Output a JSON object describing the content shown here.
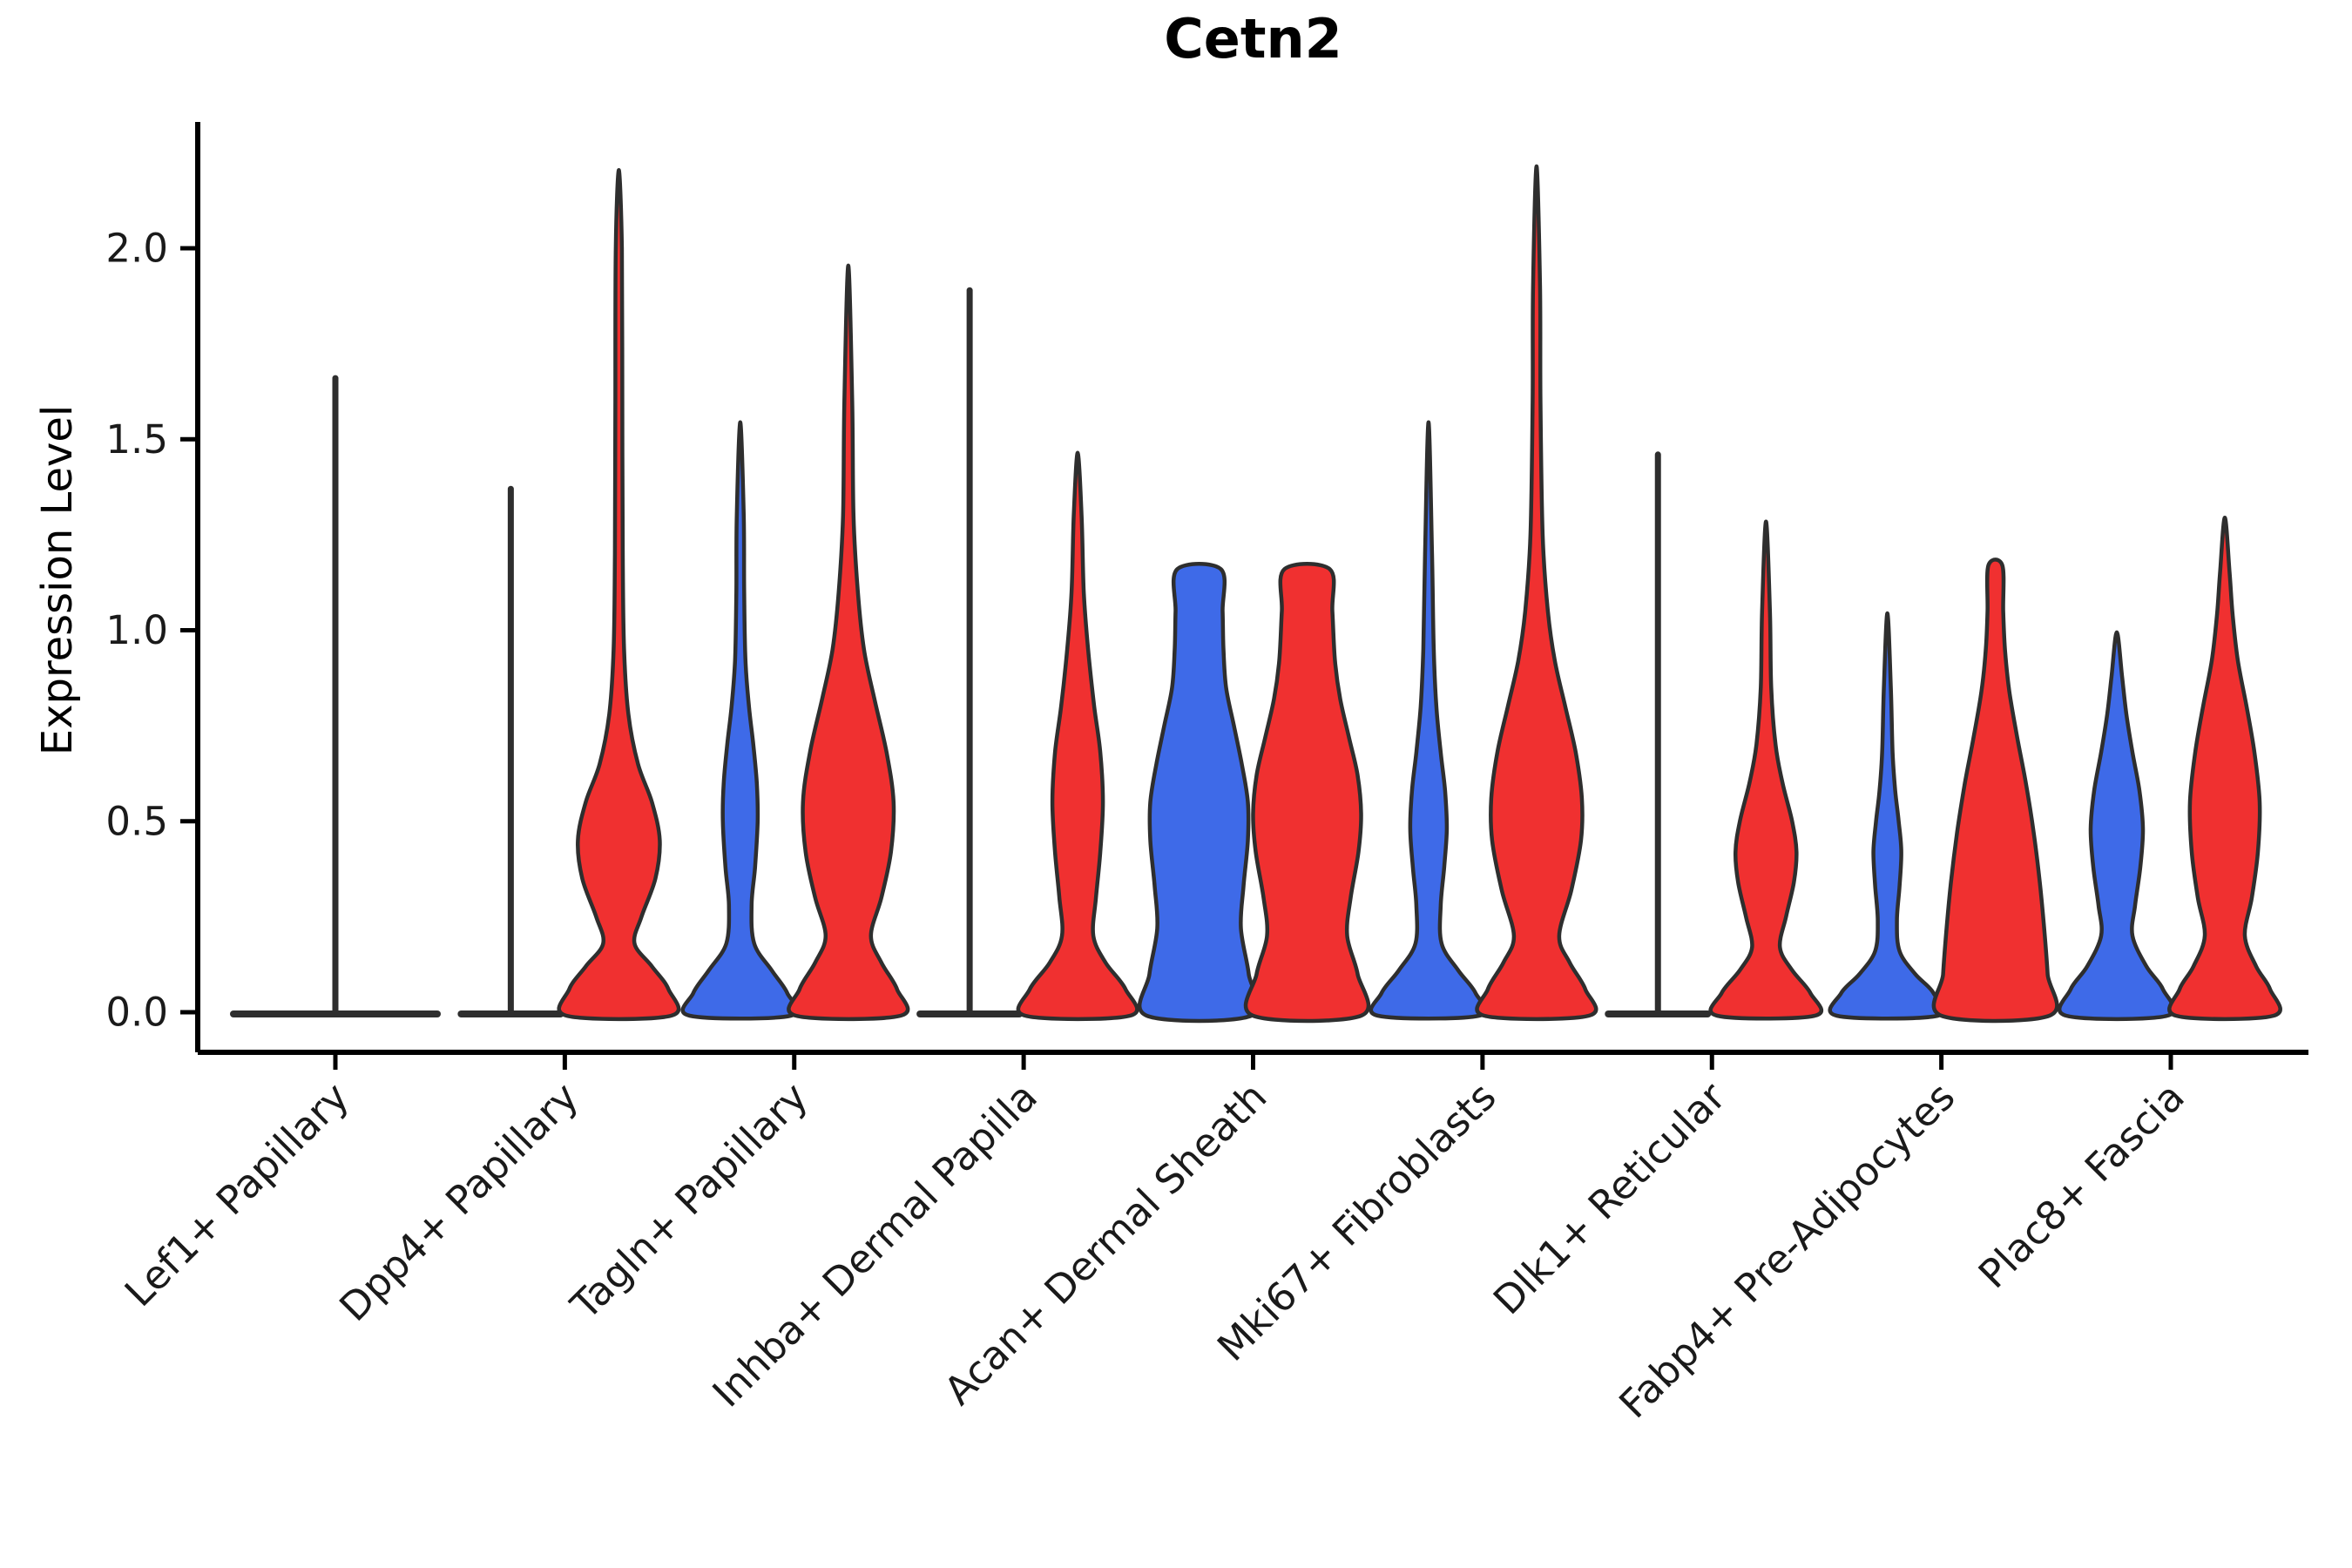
{
  "figure": {
    "title": "Cetn2",
    "ylabel": "Expression Level"
  },
  "chart_data": {
    "type": "violin",
    "title": "Cetn2",
    "xlabel": "",
    "ylabel": "Expression Level",
    "yticks": [
      0.0,
      0.5,
      1.0,
      1.5,
      2.0
    ],
    "ylim": [
      -0.1,
      2.33
    ],
    "grid": false,
    "legend": "none",
    "colors": {
      "blue": "#3E6AE8",
      "red": "#F03030",
      "outline": "#2E2E2E",
      "axis": "#000000",
      "text": "#1A1A1A"
    },
    "categories": [
      "Lef1+ Papillary",
      "Dpp4+ Papillary",
      "Tagln+ Papillary",
      "Inhba+ Dermal Papilla",
      "Acan+ Dermal Sheath",
      "Mki67+ Fibroblasts",
      "Dlk1+ Reticular",
      "Fabp4+ Pre-Adipocytes",
      "Plac8+ Fascia"
    ],
    "violins": [
      {
        "category": "Lef1+ Papillary",
        "parts": [
          {
            "group": "both",
            "side": 0,
            "kind": "flat",
            "color": "outline",
            "halfwidth": 120,
            "spike_top": 1.66
          }
        ]
      },
      {
        "category": "Dpp4+ Papillary",
        "parts": [
          {
            "group": "blue",
            "side": -1,
            "kind": "flat",
            "color": "outline",
            "halfwidth": 60,
            "spike_top": 1.37
          },
          {
            "group": "red",
            "side": 1,
            "kind": "density",
            "color": "red",
            "max": 2.2,
            "profile": [
              [
                0,
                60
              ],
              [
                0.06,
                57
              ],
              [
                0.12,
                38
              ],
              [
                0.18,
                18
              ],
              [
                0.25,
                26
              ],
              [
                0.35,
                42
              ],
              [
                0.45,
                47
              ],
              [
                0.55,
                38
              ],
              [
                0.65,
                22
              ],
              [
                0.78,
                11
              ],
              [
                0.95,
                6
              ],
              [
                1.2,
                4.5
              ],
              [
                1.6,
                4
              ],
              [
                2.0,
                3.5
              ],
              [
                2.2,
                3
              ]
            ]
          }
        ]
      },
      {
        "category": "Tagln+ Papillary",
        "parts": [
          {
            "group": "blue",
            "side": -1,
            "kind": "density",
            "color": "blue",
            "max": 1.54,
            "profile": [
              [
                0,
                58
              ],
              [
                0.05,
                54
              ],
              [
                0.11,
                36
              ],
              [
                0.18,
                16
              ],
              [
                0.28,
                13
              ],
              [
                0.38,
                17
              ],
              [
                0.5,
                20
              ],
              [
                0.6,
                19
              ],
              [
                0.7,
                15
              ],
              [
                0.8,
                10
              ],
              [
                0.92,
                6
              ],
              [
                1.1,
                4.5
              ],
              [
                1.3,
                4
              ],
              [
                1.54,
                3
              ]
            ]
          },
          {
            "group": "red",
            "side": 1,
            "kind": "density",
            "color": "red",
            "max": 1.95,
            "profile": [
              [
                0,
                60
              ],
              [
                0.06,
                56
              ],
              [
                0.13,
                38
              ],
              [
                0.2,
                26
              ],
              [
                0.3,
                38
              ],
              [
                0.42,
                49
              ],
              [
                0.55,
                52
              ],
              [
                0.68,
                44
              ],
              [
                0.82,
                30
              ],
              [
                0.95,
                18
              ],
              [
                1.1,
                11
              ],
              [
                1.3,
                6
              ],
              [
                1.6,
                4.5
              ],
              [
                1.95,
                3
              ]
            ]
          }
        ]
      },
      {
        "category": "Inhba+ Dermal Papilla",
        "parts": [
          {
            "group": "blue",
            "side": -1,
            "kind": "flat",
            "color": "outline",
            "halfwidth": 60,
            "spike_top": 1.89
          },
          {
            "group": "red",
            "side": 1,
            "kind": "density",
            "color": "red",
            "max": 1.46,
            "profile": [
              [
                0,
                60
              ],
              [
                0.06,
                55
              ],
              [
                0.13,
                32
              ],
              [
                0.2,
                18
              ],
              [
                0.3,
                21
              ],
              [
                0.42,
                26
              ],
              [
                0.55,
                29
              ],
              [
                0.68,
                26
              ],
              [
                0.8,
                19
              ],
              [
                0.95,
                12
              ],
              [
                1.1,
                7
              ],
              [
                1.3,
                4.5
              ],
              [
                1.46,
                3
              ]
            ]
          }
        ]
      },
      {
        "category": "Acan+ Dermal Sheath",
        "parts": [
          {
            "group": "blue",
            "side": -1,
            "kind": "density",
            "color": "blue",
            "max": 1.16,
            "flat_top": true,
            "profile": [
              [
                0,
                60
              ],
              [
                0.1,
                57
              ],
              [
                0.22,
                48
              ],
              [
                0.33,
                51
              ],
              [
                0.45,
                56
              ],
              [
                0.55,
                56
              ],
              [
                0.65,
                49
              ],
              [
                0.75,
                40
              ],
              [
                0.85,
                31
              ],
              [
                0.95,
                28
              ],
              [
                1.05,
                27
              ],
              [
                1.16,
                25
              ]
            ]
          },
          {
            "group": "red",
            "side": 1,
            "kind": "density",
            "color": "red",
            "max": 1.16,
            "flat_top": true,
            "profile": [
              [
                0,
                62
              ],
              [
                0.1,
                58
              ],
              [
                0.2,
                46
              ],
              [
                0.3,
                50
              ],
              [
                0.42,
                59
              ],
              [
                0.52,
                62
              ],
              [
                0.62,
                58
              ],
              [
                0.72,
                48
              ],
              [
                0.82,
                38
              ],
              [
                0.92,
                32
              ],
              [
                1.05,
                29
              ],
              [
                1.16,
                26
              ]
            ]
          }
        ]
      },
      {
        "category": "Mki67+ Fibroblasts",
        "parts": [
          {
            "group": "blue",
            "side": -1,
            "kind": "density",
            "color": "blue",
            "max": 1.54,
            "profile": [
              [
                0,
                58
              ],
              [
                0.05,
                54
              ],
              [
                0.11,
                34
              ],
              [
                0.18,
                15
              ],
              [
                0.28,
                14
              ],
              [
                0.38,
                18
              ],
              [
                0.48,
                21
              ],
              [
                0.58,
                19
              ],
              [
                0.68,
                14
              ],
              [
                0.8,
                9
              ],
              [
                0.95,
                6
              ],
              [
                1.2,
                4
              ],
              [
                1.54,
                3
              ]
            ]
          },
          {
            "group": "red",
            "side": 1,
            "kind": "density",
            "color": "red",
            "max": 2.21,
            "profile": [
              [
                0,
                60
              ],
              [
                0.06,
                56
              ],
              [
                0.13,
                38
              ],
              [
                0.2,
                26
              ],
              [
                0.32,
                40
              ],
              [
                0.45,
                51
              ],
              [
                0.56,
                52
              ],
              [
                0.68,
                45
              ],
              [
                0.8,
                33
              ],
              [
                0.92,
                21
              ],
              [
                1.05,
                13
              ],
              [
                1.25,
                7
              ],
              [
                1.6,
                4.5
              ],
              [
                1.9,
                4
              ],
              [
                2.21,
                3
              ]
            ]
          }
        ]
      },
      {
        "category": "Dlk1+ Reticular",
        "parts": [
          {
            "group": "blue",
            "side": -1,
            "kind": "flat",
            "color": "outline",
            "halfwidth": 60,
            "spike_top": 1.46
          },
          {
            "group": "red",
            "side": 1,
            "kind": "density",
            "color": "red",
            "max": 1.28,
            "profile": [
              [
                0,
                56
              ],
              [
                0.05,
                51
              ],
              [
                0.11,
                30
              ],
              [
                0.17,
                16
              ],
              [
                0.25,
                23
              ],
              [
                0.34,
                32
              ],
              [
                0.42,
                35
              ],
              [
                0.5,
                30
              ],
              [
                0.6,
                19
              ],
              [
                0.7,
                11
              ],
              [
                0.85,
                6
              ],
              [
                1.05,
                4.5
              ],
              [
                1.28,
                3
              ]
            ]
          }
        ]
      },
      {
        "category": "Fabp4+ Pre-Adipocytes",
        "parts": [
          {
            "group": "blue",
            "side": -1,
            "kind": "density",
            "color": "blue",
            "max": 1.04,
            "profile": [
              [
                0,
                58
              ],
              [
                0.05,
                53
              ],
              [
                0.1,
                32
              ],
              [
                0.16,
                14
              ],
              [
                0.24,
                11
              ],
              [
                0.33,
                14
              ],
              [
                0.42,
                16
              ],
              [
                0.5,
                13
              ],
              [
                0.58,
                9
              ],
              [
                0.68,
                6
              ],
              [
                0.85,
                4
              ],
              [
                1.04,
                3
              ]
            ]
          },
          {
            "group": "red",
            "side": 1,
            "kind": "density",
            "color": "red",
            "max": 1.17,
            "flat_top": true,
            "profile": [
              [
                0,
                62
              ],
              [
                0.1,
                60
              ],
              [
                0.22,
                56
              ],
              [
                0.34,
                51
              ],
              [
                0.47,
                44
              ],
              [
                0.6,
                35
              ],
              [
                0.72,
                25
              ],
              [
                0.84,
                16
              ],
              [
                0.95,
                11
              ],
              [
                1.05,
                9
              ],
              [
                1.17,
                8
              ]
            ]
          }
        ]
      },
      {
        "category": "Plac8+ Fascia",
        "parts": [
          {
            "group": "blue",
            "side": -1,
            "kind": "density",
            "color": "blue",
            "max": 0.99,
            "profile": [
              [
                0,
                58
              ],
              [
                0.06,
                53
              ],
              [
                0.12,
                34
              ],
              [
                0.2,
                18
              ],
              [
                0.28,
                21
              ],
              [
                0.38,
                27
              ],
              [
                0.48,
                30
              ],
              [
                0.58,
                26
              ],
              [
                0.68,
                18
              ],
              [
                0.78,
                11
              ],
              [
                0.88,
                6
              ],
              [
                0.99,
                3.5
              ]
            ]
          },
          {
            "group": "red",
            "side": 1,
            "kind": "density",
            "color": "red",
            "max": 1.29,
            "profile": [
              [
                0,
                56
              ],
              [
                0.06,
                52
              ],
              [
                0.12,
                36
              ],
              [
                0.2,
                23
              ],
              [
                0.3,
                31
              ],
              [
                0.42,
                38
              ],
              [
                0.55,
                40
              ],
              [
                0.68,
                34
              ],
              [
                0.8,
                25
              ],
              [
                0.92,
                15
              ],
              [
                1.04,
                9
              ],
              [
                1.15,
                5.5
              ],
              [
                1.29,
                3
              ]
            ]
          }
        ]
      }
    ]
  }
}
